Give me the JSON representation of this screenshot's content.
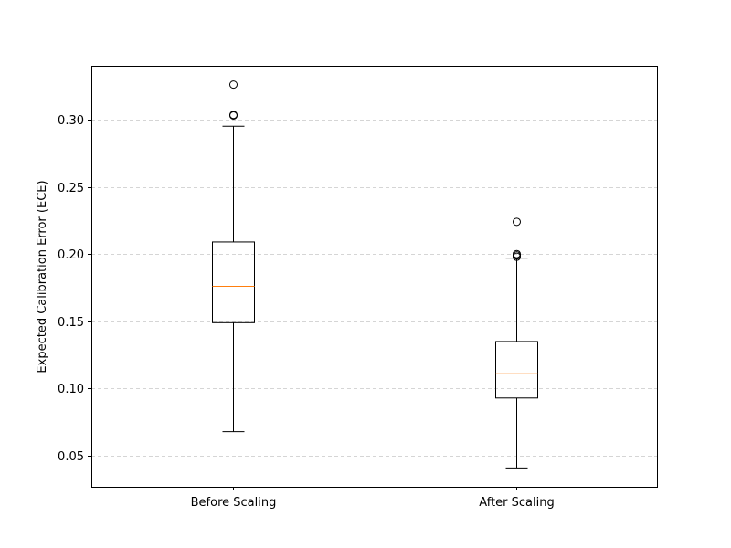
{
  "chart_data": {
    "type": "box",
    "title": "",
    "xlabel": "",
    "ylabel": "Expected Calibration Error (ECE)",
    "ylim": [
      0.027,
      0.34
    ],
    "yticks": [
      0.05,
      0.1,
      0.15,
      0.2,
      0.25,
      0.3
    ],
    "ytick_labels": [
      "0.05",
      "0.10",
      "0.15",
      "0.20",
      "0.25",
      "0.30"
    ],
    "grid": {
      "y": true,
      "x": false,
      "style": "dashed"
    },
    "categories": [
      "Before Scaling",
      "After Scaling"
    ],
    "boxes": [
      {
        "category": "Before Scaling",
        "whisker_low": 0.068,
        "q1": 0.149,
        "median": 0.176,
        "q3": 0.209,
        "whisker_high": 0.295,
        "outliers": [
          0.303,
          0.3035,
          0.326
        ]
      },
      {
        "category": "After Scaling",
        "whisker_low": 0.041,
        "q1": 0.093,
        "median": 0.111,
        "q3": 0.135,
        "whisker_high": 0.197,
        "outliers": [
          0.198,
          0.199,
          0.2,
          0.224
        ]
      }
    ],
    "colors": {
      "box": "#000000",
      "median": "#ff7f0e",
      "grid": "#b0b0b0"
    }
  }
}
